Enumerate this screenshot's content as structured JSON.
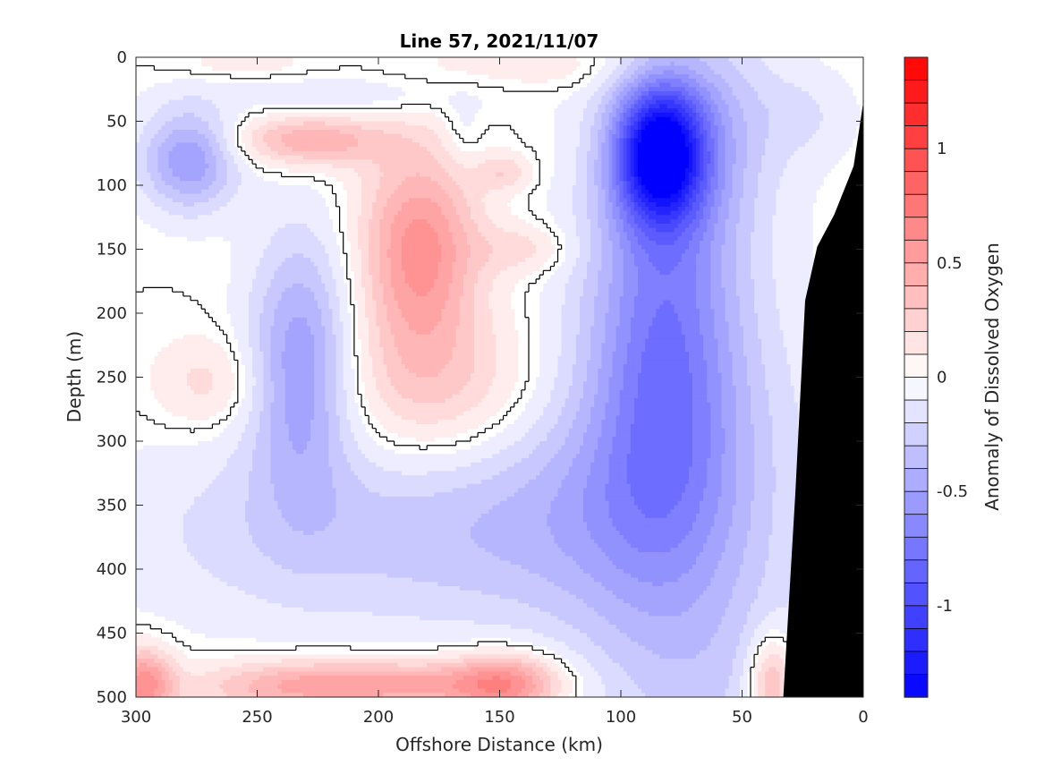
{
  "chart_data": {
    "type": "heatmap",
    "title": "Line 57, 2021/11/07",
    "xlabel": "Offshore Distance (km)",
    "ylabel": "Depth (m)",
    "x_range": [
      300,
      0
    ],
    "y_range": [
      0,
      500
    ],
    "x_ticks": [
      "300",
      "250",
      "200",
      "150",
      "100",
      "50",
      "0"
    ],
    "y_ticks": [
      "0",
      "50",
      "100",
      "150",
      "200",
      "250",
      "300",
      "350",
      "400",
      "450",
      "500"
    ],
    "x_tick_values": [
      300,
      250,
      200,
      150,
      100,
      50,
      0
    ],
    "y_tick_values": [
      0,
      50,
      100,
      150,
      200,
      250,
      300,
      350,
      400,
      450,
      500
    ],
    "colorbar": {
      "label": "Anomaly of Dissolved Oxygen",
      "range": [
        -1.4,
        1.4
      ],
      "ticks": [
        "1",
        "0.5",
        "0",
        "-0.5",
        "-1"
      ],
      "tick_values": [
        1,
        0.5,
        0,
        -0.5,
        -1
      ],
      "step": 0.1,
      "negative_color": "#0000ff",
      "zero_color": "#ffffff",
      "positive_color": "#ff0000"
    },
    "contour_line_level": 0,
    "bathymetry_color": "#000000",
    "bathymetry_profile": [
      {
        "x": 33,
        "depth": 500
      },
      {
        "x": 28,
        "depth": 340
      },
      {
        "x": 24,
        "depth": 190
      },
      {
        "x": 19,
        "depth": 148
      },
      {
        "x": 12,
        "depth": 123
      },
      {
        "x": 4,
        "depth": 85
      },
      {
        "x": 0,
        "depth": 35
      }
    ],
    "anomaly_features": [
      {
        "x": 84,
        "depth": 75,
        "value": -1.2,
        "sx": 13,
        "sy": 38
      },
      {
        "x": 82,
        "depth": 210,
        "value": -0.6,
        "sx": 22,
        "sy": 130
      },
      {
        "x": 78,
        "depth": 330,
        "value": -0.3,
        "sx": 40,
        "sy": 110
      },
      {
        "x": 62,
        "depth": 50,
        "value": -0.25,
        "sx": 22,
        "sy": 60
      },
      {
        "x": 278,
        "depth": 80,
        "value": -0.55,
        "sx": 14,
        "sy": 28
      },
      {
        "x": 232,
        "depth": 240,
        "value": -0.55,
        "sx": 15,
        "sy": 70
      },
      {
        "x": 215,
        "depth": 370,
        "value": -0.25,
        "sx": 65,
        "sy": 55
      },
      {
        "x": 130,
        "depth": 360,
        "value": -0.2,
        "sx": 45,
        "sy": 60
      },
      {
        "x": 60,
        "depth": 500,
        "value": -0.15,
        "sx": 35,
        "sy": 60
      },
      {
        "x": 205,
        "depth": 30,
        "value": -0.12,
        "sx": 45,
        "sy": 12
      },
      {
        "x": 165,
        "depth": 60,
        "value": -0.12,
        "sx": 6,
        "sy": 18
      },
      {
        "x": 22,
        "depth": 45,
        "value": -0.12,
        "sx": 14,
        "sy": 25
      },
      {
        "x": 183,
        "depth": 150,
        "value": 0.6,
        "sx": 17,
        "sy": 55
      },
      {
        "x": 175,
        "depth": 260,
        "value": 0.3,
        "sx": 30,
        "sy": 45
      },
      {
        "x": 228,
        "depth": 65,
        "value": 0.45,
        "sx": 22,
        "sy": 14
      },
      {
        "x": 140,
        "depth": 150,
        "value": 0.2,
        "sx": 14,
        "sy": 14
      },
      {
        "x": 148,
        "depth": 90,
        "value": 0.22,
        "sx": 8,
        "sy": 10
      },
      {
        "x": 270,
        "depth": 255,
        "value": 0.2,
        "sx": 16,
        "sy": 25
      },
      {
        "x": 297,
        "depth": 490,
        "value": 0.6,
        "sx": 9,
        "sy": 20
      },
      {
        "x": 240,
        "depth": 492,
        "value": 0.35,
        "sx": 28,
        "sy": 15
      },
      {
        "x": 190,
        "depth": 490,
        "value": 0.45,
        "sx": 32,
        "sy": 14
      },
      {
        "x": 147,
        "depth": 490,
        "value": 0.55,
        "sx": 16,
        "sy": 18
      },
      {
        "x": 38,
        "depth": 490,
        "value": 0.5,
        "sx": 7,
        "sy": 28
      },
      {
        "x": 120,
        "depth": 8,
        "value": 0.12,
        "sx": 40,
        "sy": 15
      },
      {
        "x": 255,
        "depth": 5,
        "value": 0.1,
        "sx": 20,
        "sy": 8
      }
    ]
  }
}
